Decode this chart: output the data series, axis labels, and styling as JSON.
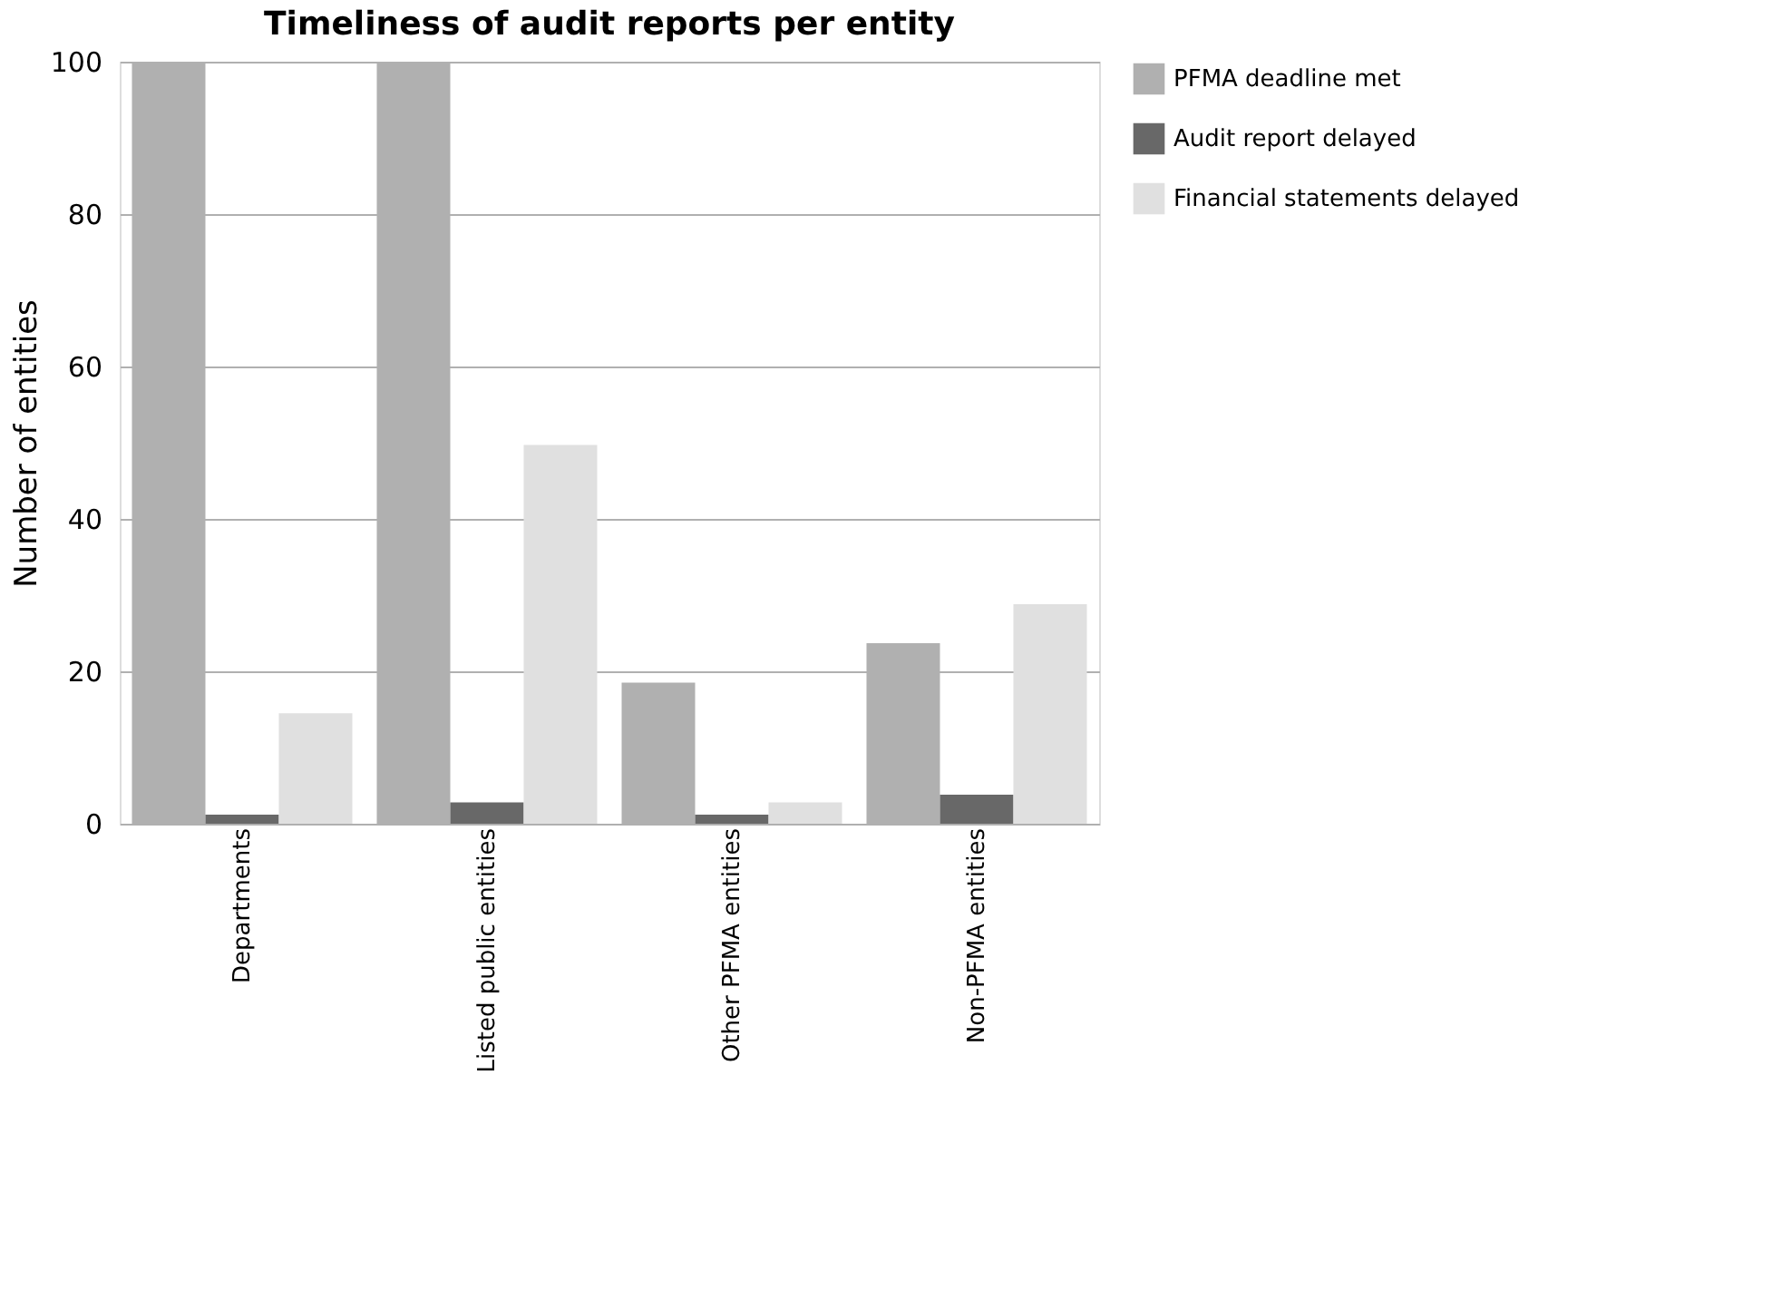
{
  "chart_data": {
    "type": "bar",
    "title": "Timeliness of audit reports per entity",
    "ylabel": "Number of entities",
    "categories": [
      "Departments",
      "Listed public entities",
      "Other PFMA entities",
      "Non-PFMA entities"
    ],
    "series": [
      {
        "name": "PFMA  deadline met",
        "color": "#b0b0b0",
        "values": [
          100,
          100,
          18.5,
          23.7
        ]
      },
      {
        "name": "Audit report delayed",
        "color": "#686868",
        "values": [
          1.2,
          2.8,
          1.2,
          3.8
        ]
      },
      {
        "name": "Financial statements delayed",
        "color": "#e0e0e0",
        "values": [
          14.5,
          49.7,
          2.8,
          28.8
        ]
      }
    ],
    "ylim": [
      0,
      100
    ],
    "yticks": [
      0,
      20,
      40,
      60,
      80,
      100
    ],
    "grid": "y",
    "legend": "right"
  }
}
